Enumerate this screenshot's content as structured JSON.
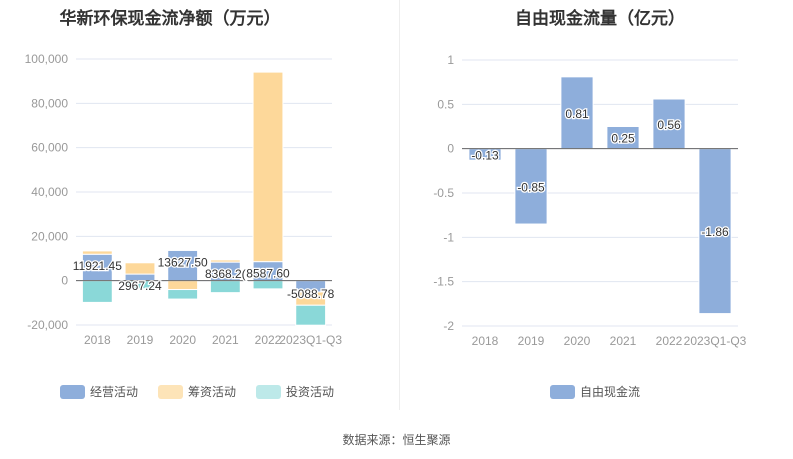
{
  "chart_data": [
    {
      "type": "bar",
      "stacked": true,
      "title": "华新环保现金流净额（万元）",
      "categories": [
        "2018",
        "2019",
        "2020",
        "2021",
        "2022",
        "2023Q1-Q3"
      ],
      "ylim": [
        -20000,
        100000
      ],
      "yticks": [
        -20000,
        0,
        20000,
        40000,
        60000,
        80000,
        100000
      ],
      "ytick_labels": [
        "-20,000",
        "0",
        "20,000",
        "40,000",
        "60,000",
        "80,000",
        "100,000"
      ],
      "series": [
        {
          "name": "经营活动",
          "color": "#8eaedb",
          "values": [
            11921.45,
            2967.24,
            13627.5,
            8368.2,
            8587.6,
            -5088.78
          ],
          "labels": [
            "11921.45",
            "2967.24",
            "13627.50",
            "8368.2(",
            "8587.60",
            "-5088.78"
          ]
        },
        {
          "name": "筹资活动",
          "color": "#fdd89a",
          "values": [
            1500,
            5100,
            -4000,
            1000,
            85500,
            -6000
          ]
        },
        {
          "name": "投资活动",
          "color": "#8ad8d8",
          "values": [
            -9800,
            -3600,
            -4300,
            -5400,
            -3700,
            -9000
          ]
        }
      ],
      "legend_position": "bottom"
    },
    {
      "type": "bar",
      "title": "自由现金流量（亿元）",
      "categories": [
        "2018",
        "2019",
        "2020",
        "2021",
        "2022",
        "2023Q1-Q3"
      ],
      "ylim": [
        -2,
        1
      ],
      "yticks": [
        -2,
        -1.5,
        -1,
        -0.5,
        0,
        0.5,
        1
      ],
      "ytick_labels": [
        "-2",
        "-1.5",
        "-1",
        "-0.5",
        "0",
        "0.5",
        "1"
      ],
      "series": [
        {
          "name": "自由现金流",
          "color": "#8eaedb",
          "values": [
            -0.13,
            -0.85,
            0.81,
            0.25,
            0.56,
            -1.86
          ],
          "labels": [
            "-0.13",
            "-0.85",
            "0.81",
            "0.25",
            "0.56",
            "-1.86"
          ]
        }
      ],
      "legend_position": "bottom"
    }
  ],
  "source": "数据来源：恒生聚源"
}
